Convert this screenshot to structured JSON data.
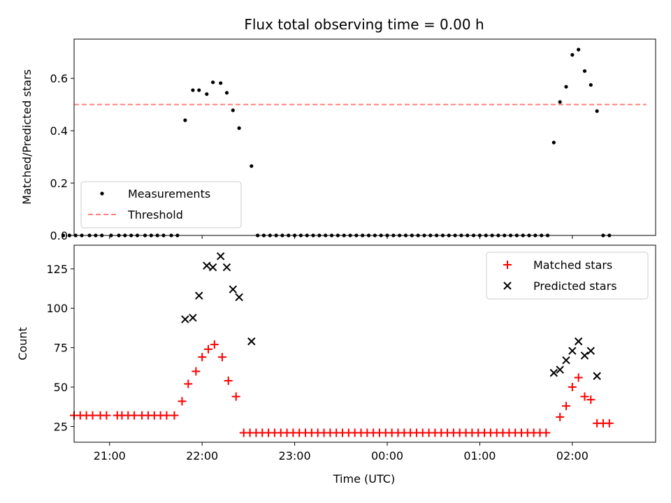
{
  "chart_data": [
    {
      "type": "scatter",
      "title": "Flux total observing time = 0.00 h",
      "xlabel": "",
      "ylabel": "Matched/Predicted stars",
      "ylim": [
        0,
        0.75
      ],
      "yticks": [
        0.0,
        0.2,
        0.4,
        0.6
      ],
      "ytick_labels": [
        "0.0",
        "0.2",
        "0.4",
        "0.6"
      ],
      "xlim": [
        "20:37",
        "02:54"
      ],
      "xticks": [
        "21:00",
        "22:00",
        "23:00",
        "00:00",
        "01:00",
        "02:00"
      ],
      "xtick_labels_visible": false,
      "grid": false,
      "legend_position": "lower-left",
      "series": [
        {
          "name": "Measurements",
          "marker": "dot",
          "color": "#000000",
          "points": [
            [
              "20:30",
              0.0
            ],
            [
              "20:34",
              0.0
            ],
            [
              "20:38",
              0.0
            ],
            [
              "20:42",
              0.0
            ],
            [
              "20:47",
              0.0
            ],
            [
              "20:51",
              0.0
            ],
            [
              "20:55",
              0.0
            ],
            [
              "21:01",
              0.0
            ],
            [
              "21:06",
              0.0
            ],
            [
              "21:10",
              0.0
            ],
            [
              "21:14",
              0.0
            ],
            [
              "21:18",
              0.0
            ],
            [
              "21:23",
              0.0
            ],
            [
              "21:27",
              0.0
            ],
            [
              "21:31",
              0.0
            ],
            [
              "21:35",
              0.0
            ],
            [
              "21:40",
              0.0
            ],
            [
              "21:44",
              0.0
            ],
            [
              "21:49",
              0.44
            ],
            [
              "21:54",
              0.555
            ],
            [
              "21:58",
              0.555
            ],
            [
              "22:03",
              0.54
            ],
            [
              "22:07",
              0.585
            ],
            [
              "22:12",
              0.582
            ],
            [
              "22:16",
              0.545
            ],
            [
              "22:20",
              0.478
            ],
            [
              "22:24",
              0.41
            ],
            [
              "22:32",
              0.265
            ],
            [
              "22:36",
              0.0
            ],
            [
              "22:40",
              0.0
            ],
            [
              "22:44",
              0.0
            ],
            [
              "22:48",
              0.0
            ],
            [
              "22:52",
              0.0
            ],
            [
              "22:56",
              0.0
            ],
            [
              "23:00",
              0.0
            ],
            [
              "23:04",
              0.0
            ],
            [
              "23:08",
              0.0
            ],
            [
              "23:12",
              0.0
            ],
            [
              "23:16",
              0.0
            ],
            [
              "23:20",
              0.0
            ],
            [
              "23:24",
              0.0
            ],
            [
              "23:28",
              0.0
            ],
            [
              "23:32",
              0.0
            ],
            [
              "23:36",
              0.0
            ],
            [
              "23:40",
              0.0
            ],
            [
              "23:44",
              0.0
            ],
            [
              "23:48",
              0.0
            ],
            [
              "23:52",
              0.0
            ],
            [
              "23:56",
              0.0
            ],
            [
              "00:00",
              0.0
            ],
            [
              "00:04",
              0.0
            ],
            [
              "00:08",
              0.0
            ],
            [
              "00:12",
              0.0
            ],
            [
              "00:16",
              0.0
            ],
            [
              "00:20",
              0.0
            ],
            [
              "00:24",
              0.0
            ],
            [
              "00:28",
              0.0
            ],
            [
              "00:32",
              0.0
            ],
            [
              "00:36",
              0.0
            ],
            [
              "00:40",
              0.0
            ],
            [
              "00:44",
              0.0
            ],
            [
              "00:48",
              0.0
            ],
            [
              "00:52",
              0.0
            ],
            [
              "00:56",
              0.0
            ],
            [
              "01:00",
              0.0
            ],
            [
              "01:04",
              0.0
            ],
            [
              "01:08",
              0.0
            ],
            [
              "01:12",
              0.0
            ],
            [
              "01:16",
              0.0
            ],
            [
              "01:20",
              0.0
            ],
            [
              "01:24",
              0.0
            ],
            [
              "01:28",
              0.0
            ],
            [
              "01:32",
              0.0
            ],
            [
              "01:36",
              0.0
            ],
            [
              "01:40",
              0.0
            ],
            [
              "01:44",
              0.0
            ],
            [
              "01:48",
              0.355
            ],
            [
              "01:52",
              0.51
            ],
            [
              "01:56",
              0.568
            ],
            [
              "02:00",
              0.69
            ],
            [
              "02:04",
              0.71
            ],
            [
              "02:08",
              0.628
            ],
            [
              "02:12",
              0.575
            ],
            [
              "02:16",
              0.475
            ],
            [
              "02:20",
              0.0
            ],
            [
              "02:24",
              0.0
            ]
          ]
        },
        {
          "name": "Threshold",
          "type": "line",
          "style": "dashed",
          "color": "#ff7f7f",
          "points": [
            [
              "20:37",
              0.5
            ],
            [
              "02:48",
              0.5
            ]
          ]
        }
      ]
    },
    {
      "type": "scatter",
      "title": "",
      "xlabel": "Time (UTC)",
      "ylabel": "Count",
      "ylim": [
        15,
        140
      ],
      "yticks": [
        25,
        50,
        75,
        100,
        125
      ],
      "ytick_labels": [
        "25",
        "50",
        "75",
        "100",
        "125"
      ],
      "xlim": [
        "20:37",
        "02:54"
      ],
      "xticks": [
        "21:00",
        "22:00",
        "23:00",
        "00:00",
        "01:00",
        "02:00"
      ],
      "xtick_labels": [
        "21:00",
        "22:00",
        "23:00",
        "00:00",
        "01:00",
        "02:00"
      ],
      "grid": false,
      "legend_position": "upper-right",
      "series": [
        {
          "name": "Matched stars",
          "marker": "plus",
          "color": "#ff0000",
          "points": [
            [
              "20:37",
              32
            ],
            [
              "20:41",
              32
            ],
            [
              "20:45",
              32
            ],
            [
              "20:49",
              32
            ],
            [
              "20:54",
              32
            ],
            [
              "20:58",
              32
            ],
            [
              "21:05",
              32
            ],
            [
              "21:08",
              32
            ],
            [
              "21:12",
              32
            ],
            [
              "21:16",
              32
            ],
            [
              "21:21",
              32
            ],
            [
              "21:25",
              32
            ],
            [
              "21:29",
              32
            ],
            [
              "21:33",
              32
            ],
            [
              "21:37",
              32
            ],
            [
              "21:42",
              32
            ],
            [
              "21:47",
              41
            ],
            [
              "21:51",
              52
            ],
            [
              "21:56",
              60
            ],
            [
              "22:00",
              69
            ],
            [
              "22:04",
              74
            ],
            [
              "22:08",
              77
            ],
            [
              "22:13",
              69
            ],
            [
              "22:17",
              54
            ],
            [
              "22:22",
              44
            ],
            [
              "22:27",
              21
            ],
            [
              "22:31",
              21
            ],
            [
              "22:35",
              21
            ],
            [
              "22:39",
              21
            ],
            [
              "22:43",
              21
            ],
            [
              "22:47",
              21
            ],
            [
              "22:51",
              21
            ],
            [
              "22:55",
              21
            ],
            [
              "22:59",
              21
            ],
            [
              "23:03",
              21
            ],
            [
              "23:07",
              21
            ],
            [
              "23:11",
              21
            ],
            [
              "23:15",
              21
            ],
            [
              "23:19",
              21
            ],
            [
              "23:23",
              21
            ],
            [
              "23:27",
              21
            ],
            [
              "23:31",
              21
            ],
            [
              "23:35",
              21
            ],
            [
              "23:39",
              21
            ],
            [
              "23:43",
              21
            ],
            [
              "23:47",
              21
            ],
            [
              "23:51",
              21
            ],
            [
              "23:55",
              21
            ],
            [
              "23:59",
              21
            ],
            [
              "00:03",
              21
            ],
            [
              "00:07",
              21
            ],
            [
              "00:11",
              21
            ],
            [
              "00:15",
              21
            ],
            [
              "00:19",
              21
            ],
            [
              "00:23",
              21
            ],
            [
              "00:27",
              21
            ],
            [
              "00:31",
              21
            ],
            [
              "00:35",
              21
            ],
            [
              "00:39",
              21
            ],
            [
              "00:43",
              21
            ],
            [
              "00:47",
              21
            ],
            [
              "00:51",
              21
            ],
            [
              "00:55",
              21
            ],
            [
              "00:59",
              21
            ],
            [
              "01:03",
              21
            ],
            [
              "01:07",
              21
            ],
            [
              "01:11",
              21
            ],
            [
              "01:15",
              21
            ],
            [
              "01:19",
              21
            ],
            [
              "01:23",
              21
            ],
            [
              "01:27",
              21
            ],
            [
              "01:31",
              21
            ],
            [
              "01:35",
              21
            ],
            [
              "01:39",
              21
            ],
            [
              "01:43",
              21
            ],
            [
              "01:52",
              31
            ],
            [
              "01:56",
              38
            ],
            [
              "02:00",
              50
            ],
            [
              "02:04",
              56
            ],
            [
              "02:08",
              44
            ],
            [
              "02:12",
              42
            ],
            [
              "02:16",
              27
            ],
            [
              "02:20",
              27
            ],
            [
              "02:24",
              27
            ]
          ]
        },
        {
          "name": "Predicted stars",
          "marker": "x",
          "color": "#000000",
          "points": [
            [
              "21:49",
              93
            ],
            [
              "21:54",
              94
            ],
            [
              "21:58",
              108
            ],
            [
              "22:03",
              127
            ],
            [
              "22:07",
              126
            ],
            [
              "22:12",
              133
            ],
            [
              "22:16",
              126
            ],
            [
              "22:20",
              112
            ],
            [
              "22:24",
              107
            ],
            [
              "22:32",
              79
            ],
            [
              "01:48",
              59
            ],
            [
              "01:52",
              61
            ],
            [
              "01:56",
              67
            ],
            [
              "02:00",
              73
            ],
            [
              "02:04",
              79
            ],
            [
              "02:08",
              70
            ],
            [
              "02:12",
              73
            ],
            [
              "02:16",
              57
            ]
          ]
        }
      ]
    }
  ]
}
